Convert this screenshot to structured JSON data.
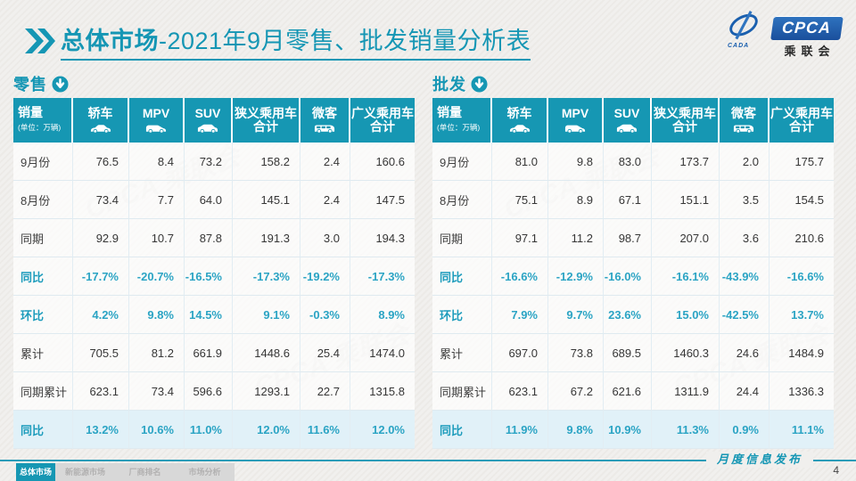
{
  "page": {
    "title_bold": "总体市场",
    "title_rest": "-2021年9月零售、批发销量分析表",
    "footer_note": "月度信息发布",
    "page_number": "4"
  },
  "logo": {
    "wordmark": "CPCA",
    "chinese_name": "乘联会",
    "swoosh_label": "CADA"
  },
  "watermark_text": "CPCA 乘联会",
  "colors": {
    "accent_teal": "#1697b3",
    "percent_text": "#2ba4c4",
    "highlight_row_bg": "#e1f1f8",
    "logo_blue": "#1a5fae"
  },
  "columns": [
    {
      "label": "销量",
      "sublabel": "(单位：万辆)",
      "icon": null
    },
    {
      "label": "轿车",
      "icon": "sedan-icon"
    },
    {
      "label": "MPV",
      "icon": "mpv-icon"
    },
    {
      "label": "SUV",
      "icon": "suv-icon"
    },
    {
      "label": "狭义乘用车\n合计",
      "icon": null
    },
    {
      "label": "微客",
      "icon": "microvan-icon"
    },
    {
      "label": "广义乘用车\n合计",
      "icon": null
    }
  ],
  "tables": [
    {
      "name": "零售",
      "key": "retail",
      "rows": [
        {
          "label": "9月份",
          "type": "data",
          "values": [
            "76.5",
            "8.4",
            "73.2",
            "158.2",
            "2.4",
            "160.6"
          ]
        },
        {
          "label": "8月份",
          "type": "data",
          "values": [
            "73.4",
            "7.7",
            "64.0",
            "145.1",
            "2.4",
            "147.5"
          ]
        },
        {
          "label": "同期",
          "type": "data",
          "values": [
            "92.9",
            "10.7",
            "87.8",
            "191.3",
            "3.0",
            "194.3"
          ]
        },
        {
          "label": "同比",
          "type": "percent",
          "values": [
            "-17.7%",
            "-20.7%",
            "-16.5%",
            "-17.3%",
            "-19.2%",
            "-17.3%"
          ]
        },
        {
          "label": "环比",
          "type": "percent",
          "values": [
            "4.2%",
            "9.8%",
            "14.5%",
            "9.1%",
            "-0.3%",
            "8.9%"
          ]
        },
        {
          "label": "累计",
          "type": "data",
          "values": [
            "705.5",
            "81.2",
            "661.9",
            "1448.6",
            "25.4",
            "1474.0"
          ]
        },
        {
          "label": "同期累计",
          "type": "data",
          "values": [
            "623.1",
            "73.4",
            "596.6",
            "1293.1",
            "22.7",
            "1315.8"
          ]
        },
        {
          "label": "同比",
          "type": "highlight",
          "values": [
            "13.2%",
            "10.6%",
            "11.0%",
            "12.0%",
            "11.6%",
            "12.0%"
          ]
        }
      ]
    },
    {
      "name": "批发",
      "key": "wholesale",
      "rows": [
        {
          "label": "9月份",
          "type": "data",
          "values": [
            "81.0",
            "9.8",
            "83.0",
            "173.7",
            "2.0",
            "175.7"
          ]
        },
        {
          "label": "8月份",
          "type": "data",
          "values": [
            "75.1",
            "8.9",
            "67.1",
            "151.1",
            "3.5",
            "154.5"
          ]
        },
        {
          "label": "同期",
          "type": "data",
          "values": [
            "97.1",
            "11.2",
            "98.7",
            "207.0",
            "3.6",
            "210.6"
          ]
        },
        {
          "label": "同比",
          "type": "percent",
          "values": [
            "-16.6%",
            "-12.9%",
            "-16.0%",
            "-16.1%",
            "-43.9%",
            "-16.6%"
          ]
        },
        {
          "label": "环比",
          "type": "percent",
          "values": [
            "7.9%",
            "9.7%",
            "23.6%",
            "15.0%",
            "-42.5%",
            "13.7%"
          ]
        },
        {
          "label": "累计",
          "type": "data",
          "values": [
            "697.0",
            "73.8",
            "689.5",
            "1460.3",
            "24.6",
            "1484.9"
          ]
        },
        {
          "label": "同期累计",
          "type": "data",
          "values": [
            "623.1",
            "67.2",
            "621.6",
            "1311.9",
            "24.4",
            "1336.3"
          ]
        },
        {
          "label": "同比",
          "type": "highlight",
          "values": [
            "11.9%",
            "9.8%",
            "10.9%",
            "11.3%",
            "0.9%",
            "11.1%"
          ]
        }
      ]
    }
  ],
  "nav": {
    "tabs": [
      {
        "label": "总体市场",
        "key": "overall-market",
        "active": true
      },
      {
        "label": "新能源市场",
        "key": "nev-market",
        "active": false
      },
      {
        "label": "厂商排名",
        "key": "manufacturer-ranking",
        "active": false
      },
      {
        "label": "市场分析",
        "key": "market-analysis",
        "active": false
      }
    ]
  }
}
